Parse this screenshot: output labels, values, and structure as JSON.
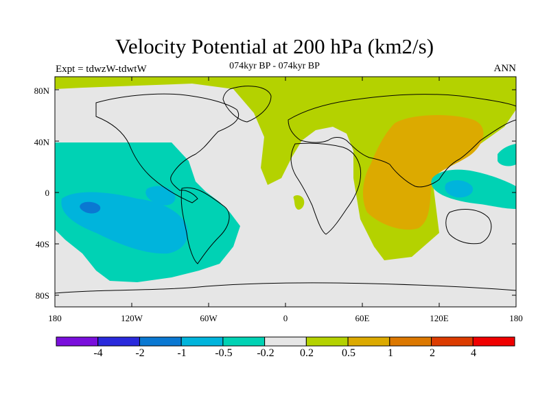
{
  "header": {
    "title": "Velocity Potential at 200 hPa (km2/s)",
    "subtitle": "074kyr BP - 074kyr BP",
    "experiment": "Expt = tdwzW-tdwtW",
    "season": "ANN"
  },
  "axes": {
    "lat_ticks": [
      "80N",
      "40N",
      "0",
      "40S",
      "80S"
    ],
    "lon_ticks": [
      "180",
      "120W",
      "60W",
      "0",
      "60E",
      "120E",
      "180"
    ]
  },
  "colorbar": {
    "labels": [
      "-4",
      "-2",
      "-1",
      "-0.5",
      "-0.2",
      "0.2",
      "0.5",
      "1",
      "2",
      "4"
    ],
    "colors": [
      "#7a0fdc",
      "#2a2adc",
      "#0a78d2",
      "#00b4dc",
      "#00d2b4",
      "#e6e6e6",
      "#b4d200",
      "#dcaa00",
      "#dc7800",
      "#dc3c00",
      "#f00000"
    ]
  },
  "fill_colors": {
    "background": "#e6e6e6",
    "neg_small": "#00d2b4",
    "neg_mid": "#00b4dc",
    "neg_large": "#0a78d2",
    "pos_small": "#b4d200",
    "pos_mid": "#dcaa00"
  }
}
